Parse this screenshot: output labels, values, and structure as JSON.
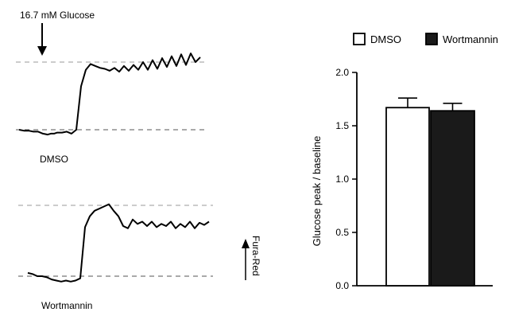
{
  "chart_data": [
    {
      "type": "line",
      "title": "",
      "annotations": {
        "stimulus": "16.7 mM Glucose",
        "scale_label": "Fura-Red"
      },
      "series": [
        {
          "name": "DMSO",
          "baseline": 1.0,
          "peak": 1.7,
          "x": [
            0,
            6,
            12,
            18,
            24,
            30,
            36,
            40,
            44,
            48,
            54,
            60,
            66,
            72,
            78,
            84,
            90,
            96,
            102,
            108,
            114,
            120,
            126,
            132,
            138,
            144,
            150,
            156,
            162,
            168,
            174,
            180,
            186,
            192,
            198,
            204,
            210,
            216,
            222,
            228
          ],
          "y": [
            1.0,
            0.99,
            0.99,
            0.98,
            0.98,
            0.96,
            0.95,
            0.96,
            0.96,
            0.97,
            0.97,
            0.98,
            0.96,
            1.0,
            1.45,
            1.62,
            1.68,
            1.66,
            1.64,
            1.63,
            1.61,
            1.64,
            1.6,
            1.66,
            1.61,
            1.67,
            1.62,
            1.7,
            1.62,
            1.72,
            1.63,
            1.74,
            1.65,
            1.76,
            1.66,
            1.78,
            1.67,
            1.79,
            1.7,
            1.75
          ]
        },
        {
          "name": "Wortmannin",
          "baseline": 1.0,
          "peak": 1.65,
          "x": [
            0,
            6,
            12,
            18,
            24,
            30,
            36,
            42,
            48,
            54,
            60,
            66,
            72,
            78,
            84,
            90,
            96,
            102,
            108,
            114,
            120,
            126,
            132,
            138,
            144,
            150,
            156,
            162,
            168,
            174,
            180,
            186,
            192,
            198,
            204,
            210,
            216,
            222,
            228
          ],
          "y": [
            1.03,
            1.02,
            1.0,
            1.0,
            0.99,
            0.97,
            0.96,
            0.95,
            0.96,
            0.95,
            0.96,
            0.98,
            1.45,
            1.55,
            1.6,
            1.62,
            1.64,
            1.66,
            1.6,
            1.55,
            1.46,
            1.44,
            1.52,
            1.48,
            1.5,
            1.46,
            1.5,
            1.45,
            1.48,
            1.46,
            1.5,
            1.44,
            1.48,
            1.45,
            1.5,
            1.44,
            1.49,
            1.47,
            1.5
          ]
        }
      ]
    },
    {
      "type": "bar",
      "title": "",
      "categories": [
        "DMSO",
        "Wortmannin"
      ],
      "values": [
        1.67,
        1.64
      ],
      "errors": [
        0.09,
        0.07
      ],
      "colors": [
        "#ffffff",
        "#1a1a1a"
      ],
      "ylabel": "Glucose peak / baseline",
      "ylim": [
        0.0,
        2.0
      ],
      "yticks": [
        "0.0",
        "0.5",
        "1.0",
        "1.5",
        "2.0"
      ],
      "legend": {
        "placement": "top",
        "entries": [
          "DMSO",
          "Wortmannin"
        ]
      }
    }
  ]
}
